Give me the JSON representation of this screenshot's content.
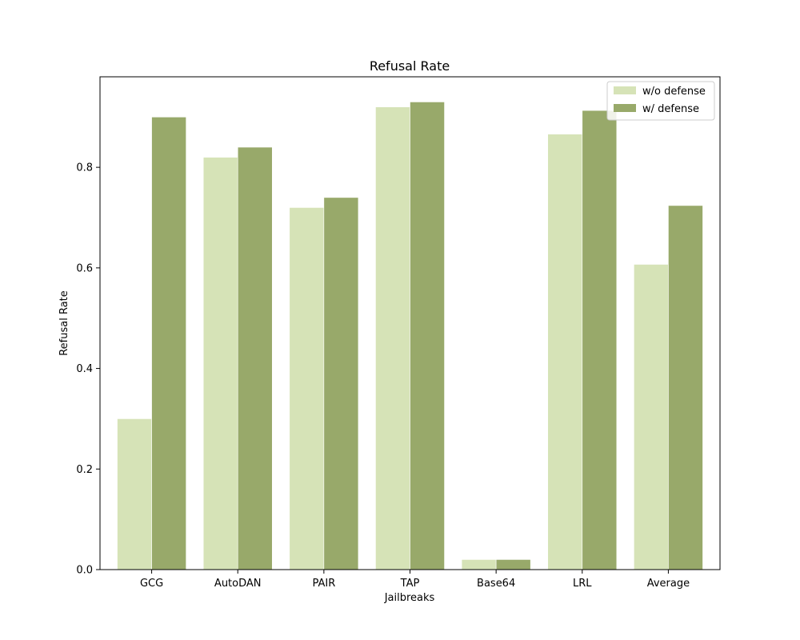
{
  "chart_data": {
    "type": "bar",
    "title": "Refusal Rate",
    "xlabel": "Jailbreaks",
    "ylabel": "Refusal Rate",
    "categories": [
      "GCG",
      "AutoDAN",
      "PAIR",
      "TAP",
      "Base64",
      "LRL",
      "Average"
    ],
    "series": [
      {
        "name": "w/o defense",
        "color": "#d6e3b7",
        "values": [
          0.3,
          0.82,
          0.72,
          0.92,
          0.02,
          0.866,
          0.607
        ]
      },
      {
        "name": "w/ defense",
        "color": "#98a96a",
        "values": [
          0.9,
          0.84,
          0.74,
          0.93,
          0.02,
          0.913,
          0.724
        ]
      }
    ],
    "ylim": [
      0,
      0.98
    ],
    "yticks": [
      0.0,
      0.2,
      0.4,
      0.6,
      0.8
    ],
    "ytick_labels": [
      "0.0",
      "0.2",
      "0.4",
      "0.6",
      "0.8"
    ],
    "grid": false,
    "legend_position": "top-right"
  }
}
